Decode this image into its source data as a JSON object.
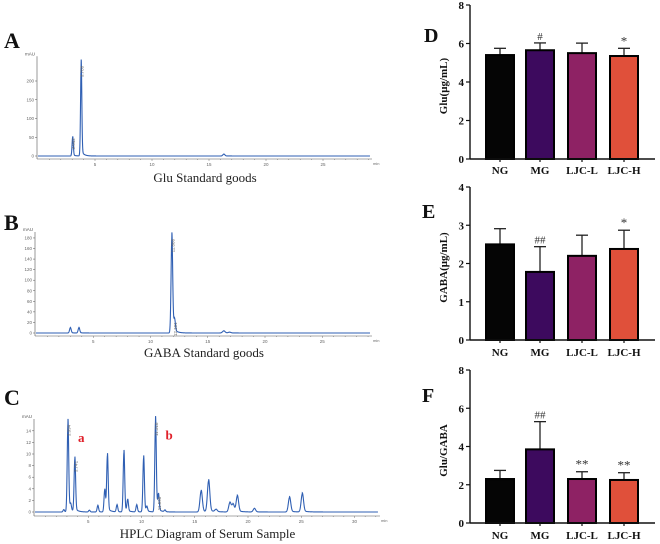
{
  "chart_data": [
    {
      "panel": "A",
      "type": "line",
      "title": "Glu Standard goods",
      "ylabel": "mAU",
      "xlabel": "min",
      "ylim": [
        0,
        250
      ],
      "yticks": [
        0,
        50,
        100,
        150,
        200
      ],
      "xticks": [
        5,
        10,
        15,
        20,
        25
      ],
      "xlim": [
        0,
        30
      ],
      "color": "#2f5fb3",
      "peaks": [
        {
          "rt": 3.042,
          "height": 50,
          "label": "3.042"
        },
        {
          "rt": 3.788,
          "height": 243,
          "label": "3.788"
        },
        {
          "rt": 16.3,
          "height": 5,
          "label": ""
        }
      ]
    },
    {
      "panel": "B",
      "type": "line",
      "title": "GABA Standard goods",
      "ylabel": "mAU",
      "xlabel": "min",
      "ylim": [
        0,
        180
      ],
      "yticks": [
        0,
        20,
        40,
        60,
        80,
        100,
        120,
        140,
        160,
        180
      ],
      "xticks": [
        5,
        10,
        15,
        20,
        25
      ],
      "xlim": [
        0,
        30
      ],
      "color": "#2f5fb3",
      "peaks": [
        {
          "rt": 3.0,
          "height": 10,
          "label": ""
        },
        {
          "rt": 3.75,
          "height": 10,
          "label": ""
        },
        {
          "rt": 11.866,
          "height": 180,
          "label": "11.866"
        },
        {
          "rt": 12.101,
          "height": 22,
          "label": "12.101"
        },
        {
          "rt": 16.4,
          "height": 4,
          "label": ""
        },
        {
          "rt": 16.9,
          "height": 1.5,
          "label": ""
        }
      ]
    },
    {
      "panel": "C",
      "type": "line",
      "title": "HPLC Diagram of Serum Sample",
      "ylabel": "mAU",
      "xlabel": "min",
      "ylim": [
        0,
        15
      ],
      "yticks": [
        0,
        2,
        4,
        6,
        8,
        10,
        12,
        14
      ],
      "xticks": [
        5,
        10,
        15,
        20,
        25,
        30
      ],
      "xlim": [
        0,
        32
      ],
      "color": "#2f5fb3",
      "annotations": [
        {
          "text": "a",
          "rt": 3.094,
          "color": "#e0202a"
        },
        {
          "text": "b",
          "rt": 11.318,
          "color": "#e0202a"
        }
      ],
      "peaks": [
        {
          "rt": 2.7,
          "height": 0.4,
          "label": ""
        },
        {
          "rt": 3.094,
          "height": 15.2,
          "label": "3.094"
        },
        {
          "rt": 3.35,
          "height": 1.1,
          "label": ""
        },
        {
          "rt": 3.741,
          "height": 9.0,
          "label": "3.741"
        },
        {
          "rt": 5.1,
          "height": 0.3,
          "label": ""
        },
        {
          "rt": 5.9,
          "height": 1.1,
          "label": ""
        },
        {
          "rt": 6.55,
          "height": 3.8,
          "label": ""
        },
        {
          "rt": 6.8,
          "height": 9.6,
          "label": ""
        },
        {
          "rt": 7.7,
          "height": 1.2,
          "label": ""
        },
        {
          "rt": 8.35,
          "height": 10.2,
          "label": ""
        },
        {
          "rt": 8.7,
          "height": 2.0,
          "label": ""
        },
        {
          "rt": 9.55,
          "height": 1.2,
          "label": ""
        },
        {
          "rt": 10.2,
          "height": 9.3,
          "label": ""
        },
        {
          "rt": 10.5,
          "height": 0.8,
          "label": ""
        },
        {
          "rt": 11.318,
          "height": 15.6,
          "label": "11.318"
        },
        {
          "rt": 11.59,
          "height": 2.8,
          "label": "11.590"
        },
        {
          "rt": 12.2,
          "height": 0.3,
          "label": ""
        },
        {
          "rt": 15.6,
          "height": 3.6,
          "label": ""
        },
        {
          "rt": 16.3,
          "height": 5.3,
          "label": ""
        },
        {
          "rt": 17.0,
          "height": 0.4,
          "label": ""
        },
        {
          "rt": 18.3,
          "height": 1.6,
          "label": ""
        },
        {
          "rt": 18.6,
          "height": 1.3,
          "label": ""
        },
        {
          "rt": 19.0,
          "height": 2.7,
          "label": ""
        },
        {
          "rt": 20.6,
          "height": 0.6,
          "label": ""
        },
        {
          "rt": 23.9,
          "height": 2.5,
          "label": ""
        },
        {
          "rt": 25.1,
          "height": 3.1,
          "label": ""
        }
      ]
    },
    {
      "panel": "D",
      "type": "bar",
      "ylabel": "Glu(μg/mL)",
      "ylim": [
        0,
        8
      ],
      "yticks": [
        0,
        2,
        4,
        6,
        8
      ],
      "categories": [
        "NG",
        "MG",
        "LJC-L",
        "LJC-H"
      ],
      "values": [
        5.4,
        5.65,
        5.5,
        5.35
      ],
      "errors": [
        0.35,
        0.38,
        0.52,
        0.4
      ],
      "significance": [
        "",
        "#",
        "",
        "*"
      ],
      "colors": [
        "#050505",
        "#3d0a5e",
        "#8e2264",
        "#e0503a"
      ]
    },
    {
      "panel": "E",
      "type": "bar",
      "ylabel": "GABA(μg/mL)",
      "ylim": [
        0,
        4
      ],
      "yticks": [
        0,
        1,
        2,
        3,
        4
      ],
      "categories": [
        "NG",
        "MG",
        "LJC-L",
        "LJC-H"
      ],
      "values": [
        2.5,
        1.78,
        2.2,
        2.38
      ],
      "errors": [
        0.41,
        0.66,
        0.54,
        0.49
      ],
      "significance": [
        "",
        "##",
        "",
        "*"
      ],
      "colors": [
        "#050505",
        "#3d0a5e",
        "#8e2264",
        "#e0503a"
      ]
    },
    {
      "panel": "F",
      "type": "bar",
      "ylabel": "Glu/GABA",
      "ylim": [
        0,
        8
      ],
      "yticks": [
        0,
        2,
        4,
        6,
        8
      ],
      "categories": [
        "NG",
        "MG",
        "LJC-L",
        "LJC-H"
      ],
      "values": [
        2.3,
        3.85,
        2.3,
        2.25
      ],
      "errors": [
        0.45,
        1.45,
        0.38,
        0.38
      ],
      "significance": [
        "",
        "##",
        "**",
        "**"
      ],
      "colors": [
        "#050505",
        "#3d0a5e",
        "#8e2264",
        "#e0503a"
      ]
    }
  ]
}
